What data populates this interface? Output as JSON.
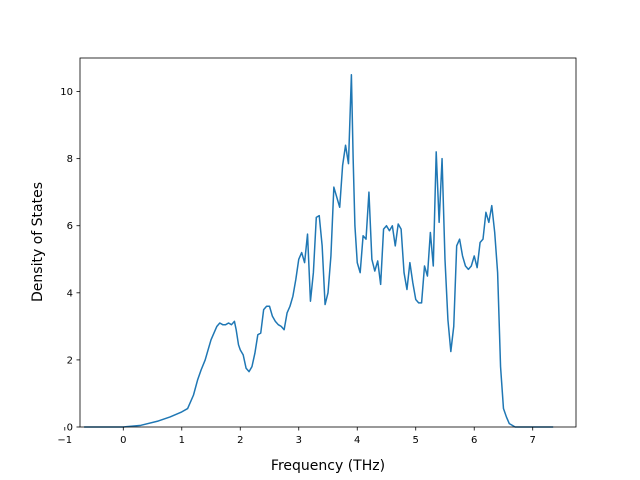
{
  "chart_data": {
    "type": "line",
    "title": "",
    "xlabel": "Frequency (THz)",
    "ylabel": "Density of States",
    "xlim": [
      -0.74,
      7.74
    ],
    "ylim": [
      0,
      11
    ],
    "xticks": [
      -1,
      0,
      1,
      2,
      3,
      4,
      5,
      6,
      7
    ],
    "yticks": [
      0,
      2,
      4,
      6,
      8,
      10
    ],
    "grid": false,
    "legend": "none",
    "colors": {
      "line": "#1f77b4",
      "axes": "#000000",
      "background": "#ffffff"
    },
    "series": [
      {
        "x": [
          -0.67,
          0.0,
          0.3,
          0.6,
          0.8,
          1.0,
          1.1,
          1.2,
          1.27,
          1.33,
          1.4,
          1.45,
          1.5,
          1.55,
          1.6,
          1.65,
          1.7,
          1.75,
          1.8,
          1.85,
          1.9,
          1.93,
          1.97,
          2.0,
          2.05,
          2.1,
          2.15,
          2.2,
          2.25,
          2.3,
          2.35,
          2.4,
          2.45,
          2.5,
          2.55,
          2.6,
          2.65,
          2.7,
          2.75,
          2.8,
          2.85,
          2.9,
          2.95,
          3.0,
          3.05,
          3.1,
          3.15,
          3.2,
          3.25,
          3.3,
          3.35,
          3.4,
          3.45,
          3.5,
          3.55,
          3.6,
          3.65,
          3.7,
          3.75,
          3.8,
          3.85,
          3.9,
          3.93,
          3.96,
          4.0,
          4.05,
          4.1,
          4.15,
          4.2,
          4.25,
          4.3,
          4.35,
          4.4,
          4.45,
          4.5,
          4.55,
          4.6,
          4.65,
          4.7,
          4.75,
          4.8,
          4.85,
          4.9,
          4.95,
          5.0,
          5.05,
          5.1,
          5.15,
          5.2,
          5.25,
          5.3,
          5.35,
          5.4,
          5.45,
          5.5,
          5.55,
          5.6,
          5.65,
          5.7,
          5.75,
          5.8,
          5.85,
          5.9,
          5.95,
          6.0,
          6.05,
          6.1,
          6.15,
          6.2,
          6.25,
          6.3,
          6.35,
          6.4,
          6.45,
          6.5,
          6.55,
          6.6,
          6.7,
          7.0,
          7.35
        ],
        "y": [
          0,
          0,
          0.05,
          0.18,
          0.3,
          0.45,
          0.55,
          0.95,
          1.4,
          1.7,
          2.0,
          2.3,
          2.6,
          2.8,
          3.0,
          3.1,
          3.05,
          3.05,
          3.1,
          3.05,
          3.15,
          2.9,
          2.45,
          2.3,
          2.15,
          1.75,
          1.65,
          1.8,
          2.2,
          2.75,
          2.8,
          3.5,
          3.6,
          3.6,
          3.3,
          3.15,
          3.05,
          3.0,
          2.9,
          3.4,
          3.6,
          3.9,
          4.4,
          5.0,
          5.2,
          4.9,
          5.75,
          3.75,
          4.6,
          6.25,
          6.3,
          5.4,
          3.65,
          4.0,
          5.1,
          7.15,
          6.85,
          6.55,
          7.8,
          8.4,
          7.85,
          10.5,
          8.0,
          6.0,
          4.9,
          4.6,
          5.7,
          5.6,
          7.0,
          5.0,
          4.65,
          4.95,
          4.25,
          5.9,
          6.0,
          5.85,
          6.0,
          5.4,
          6.05,
          5.9,
          4.6,
          4.1,
          4.9,
          4.3,
          3.8,
          3.7,
          3.7,
          4.8,
          4.5,
          5.8,
          4.8,
          8.2,
          6.1,
          8.0,
          5.0,
          3.2,
          2.25,
          3.0,
          5.4,
          5.6,
          5.1,
          4.8,
          4.7,
          4.8,
          5.1,
          4.75,
          5.5,
          5.6,
          6.4,
          6.1,
          6.6,
          5.8,
          4.6,
          1.8,
          0.55,
          0.3,
          0.1,
          0,
          0,
          0
        ]
      }
    ]
  }
}
